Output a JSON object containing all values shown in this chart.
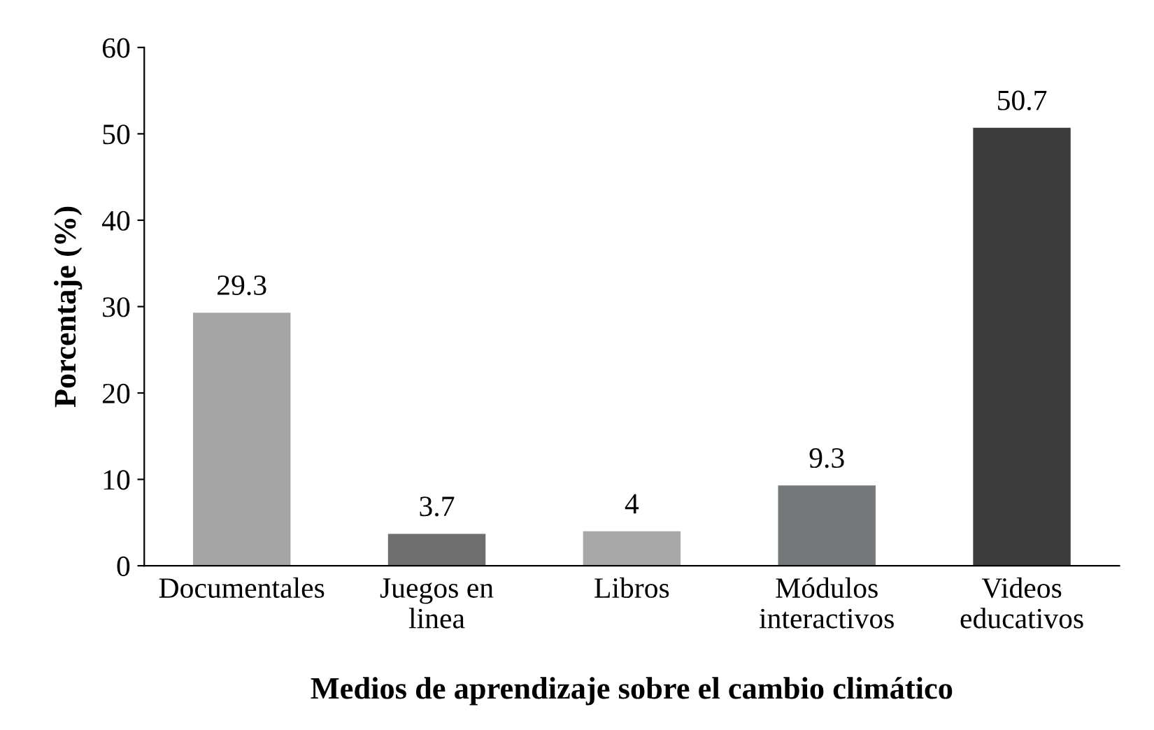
{
  "chart_data": {
    "type": "bar",
    "xlabel": "Medios de aprendizaje sobre el cambio climático",
    "ylabel": "Porcentaje (%)",
    "categories": [
      "Documentales",
      "Juegos en\nlinea",
      "Libros",
      "Módulos\ninteractivos",
      "Videos\neducativos"
    ],
    "values": [
      29.3,
      3.7,
      4,
      9.3,
      50.7
    ],
    "colors": [
      "#a5a5a5",
      "#6f6f6f",
      "#a8a8a8",
      "#75797b",
      "#3b3b3b"
    ],
    "ylim": [
      0,
      60
    ],
    "yticks": [
      0,
      10,
      20,
      30,
      40,
      50,
      60
    ],
    "data_labels": true,
    "grid": false,
    "legend": false
  }
}
